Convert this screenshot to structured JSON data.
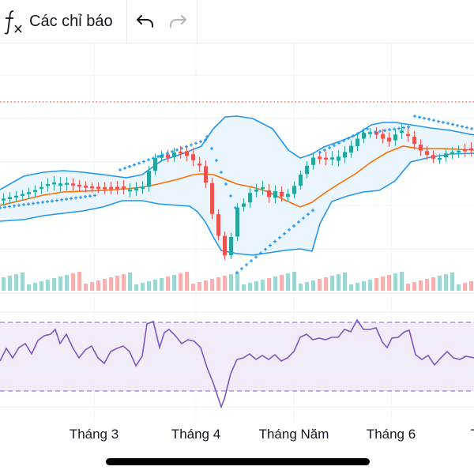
{
  "toolbar": {
    "fx_icon": "function-fx-icon",
    "indicators_label": "Các chỉ báo",
    "undo_icon": "undo-icon",
    "redo_icon": "redo-icon",
    "redo_enabled": false
  },
  "x_axis": {
    "ticks": [
      "Tháng 3",
      "Tháng 4",
      "Tháng Năm",
      "Tháng 6",
      "T"
    ]
  },
  "colors": {
    "up_candle": "#26a69a",
    "down_candle": "#ef5350",
    "bollinger_line": "#2196f3",
    "bollinger_fill": "#e3f2fd",
    "basis_line": "#ff6d00",
    "parabolic_sar": "#2196f3",
    "rsi_line": "#7e57c2",
    "rsi_band_fill": "#ede7f6",
    "rsi_band_dashes": "#7e57c2",
    "price_line": "#ef5350",
    "grid": "#f0f3fa"
  },
  "chart_data": [
    {
      "type": "candlestick",
      "overlays": [
        "bollinger-bands",
        "bollinger-basis",
        "parabolic-sar",
        "volume"
      ],
      "x": [
        "",
        "Tháng 3",
        "Tháng 4",
        "Tháng Năm",
        "Tháng 6",
        "T"
      ],
      "grid": true
    },
    {
      "type": "line",
      "series": [
        {
          "values": []
        }
      ],
      "upper_band_dashed": true,
      "lower_band_dashed": true,
      "grid": true
    }
  ]
}
